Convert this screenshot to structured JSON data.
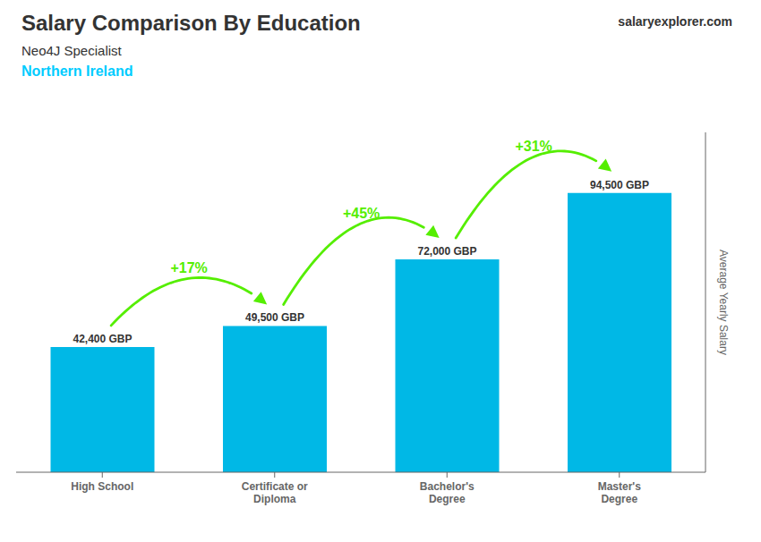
{
  "chart_data": {
    "type": "bar",
    "title": "Salary Comparison By Education",
    "subtitle": "Neo4J Specialist",
    "y_label": "Average Yearly Salary",
    "categories": [
      "High School",
      "Certificate or\nDiploma",
      "Bachelor's\nDegree",
      "Master's\nDegree"
    ],
    "values": [
      42400,
      49500,
      72000,
      94500
    ],
    "value_labels": [
      "42,400 GBP",
      "49,500 GBP",
      "72,000 GBP",
      "94,500 GBP"
    ],
    "data_labels": true,
    "color": "#00b8e6",
    "ylim": [
      0,
      115000
    ],
    "tick_labels": "x",
    "grid": false,
    "annotations": [
      {
        "text": "Northern Ireland",
        "color": "#00ccff"
      },
      {
        "text": "salaryexplorer.com"
      },
      {
        "text": "+17%",
        "from": "High School",
        "to": "Certificate or\nDiploma",
        "color": "#55ee00"
      },
      {
        "text": "+45%",
        "from": "Certificate or\nDiploma",
        "to": "Bachelor's\nDegree",
        "color": "#55ee00"
      },
      {
        "text": "+31%",
        "from": "Bachelor's\nDegree",
        "to": "Master's\nDegree",
        "color": "#55ee00"
      }
    ]
  }
}
